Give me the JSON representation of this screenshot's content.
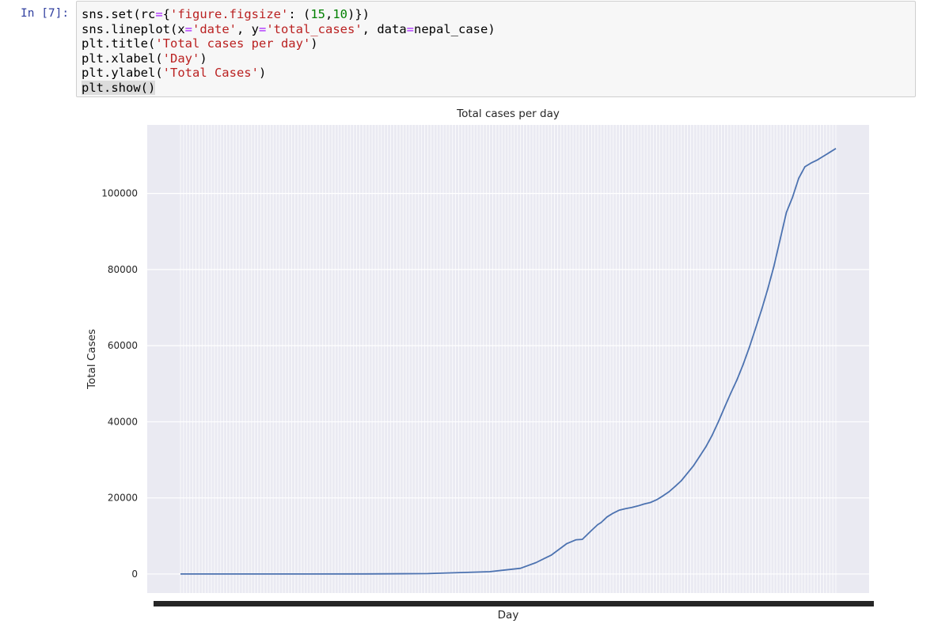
{
  "notebook": {
    "prompt": "In [7]:",
    "code_lines": [
      [
        {
          "t": "sns.set(rc"
        },
        {
          "t": "=",
          "c": "op"
        },
        {
          "t": "{"
        },
        {
          "t": "'figure.figsize'",
          "c": "str"
        },
        {
          "t": ": ("
        },
        {
          "t": "15",
          "c": "num"
        },
        {
          "t": ","
        },
        {
          "t": "10",
          "c": "num"
        },
        {
          "t": ")})"
        }
      ],
      [
        {
          "t": "sns.lineplot(x"
        },
        {
          "t": "=",
          "c": "op"
        },
        {
          "t": "'date'",
          "c": "str"
        },
        {
          "t": ", y"
        },
        {
          "t": "=",
          "c": "op"
        },
        {
          "t": "'total_cases'",
          "c": "str"
        },
        {
          "t": ", data"
        },
        {
          "t": "=",
          "c": "op"
        },
        {
          "t": "nepal_case)"
        }
      ],
      [
        {
          "t": "plt.title("
        },
        {
          "t": "'Total cases per day'",
          "c": "str"
        },
        {
          "t": ")"
        }
      ],
      [
        {
          "t": "plt.xlabel("
        },
        {
          "t": "'Day'",
          "c": "str"
        },
        {
          "t": ")"
        }
      ],
      [
        {
          "t": "plt.ylabel("
        },
        {
          "t": "'Total Cases'",
          "c": "str"
        },
        {
          "t": ")"
        }
      ],
      [
        {
          "t": "plt.show()",
          "c": "hl"
        }
      ]
    ]
  },
  "colors": {
    "axes_bg": "#eaeaf2",
    "grid": "#ffffff",
    "line": "#4c72b0",
    "text": "#262626"
  },
  "chart_data": {
    "type": "line",
    "title": "Total cases per day",
    "xlabel": "Day",
    "ylabel": "Total Cases",
    "ylim": [
      -5000,
      118000
    ],
    "yticks": [
      0,
      20000,
      40000,
      60000,
      80000,
      100000
    ],
    "ytick_labels": [
      "0",
      "20000",
      "40000",
      "60000",
      "80000",
      "100000"
    ],
    "grid": true,
    "x_tick_labels_note": "overlapping date labels, illegible",
    "x_index_range": [
      0,
      212
    ],
    "series": [
      {
        "x": [
          0,
          20,
          40,
          60,
          80,
          100,
          110,
          115,
          118,
          120,
          125,
          128,
          130,
          133,
          135,
          136,
          138,
          140,
          142,
          144,
          146,
          148,
          150,
          152,
          154,
          156,
          158,
          160,
          162,
          164,
          166,
          168,
          170,
          172,
          174,
          176,
          178,
          180,
          182,
          184,
          186,
          188,
          190,
          192,
          194,
          196,
          198,
          200,
          202,
          204,
          206,
          207,
          208,
          209,
          210,
          211,
          212
        ],
        "y": [
          0,
          0,
          5,
          30,
          120,
          600,
          1500,
          3000,
          4200,
          5000,
          8000,
          9000,
          9100,
          11500,
          13000,
          13500,
          15000,
          16000,
          16800,
          17200,
          17500,
          17900,
          18400,
          18800,
          19500,
          20500,
          21600,
          23000,
          24500,
          26500,
          28500,
          31000,
          33500,
          36500,
          40000,
          43800,
          47500,
          51000,
          55000,
          59500,
          64500,
          69500,
          75000,
          81000,
          88000,
          95000,
          99000,
          104000,
          107000,
          108000,
          108800,
          109300,
          109800,
          110300,
          110800,
          111300,
          111800
        ]
      }
    ]
  }
}
